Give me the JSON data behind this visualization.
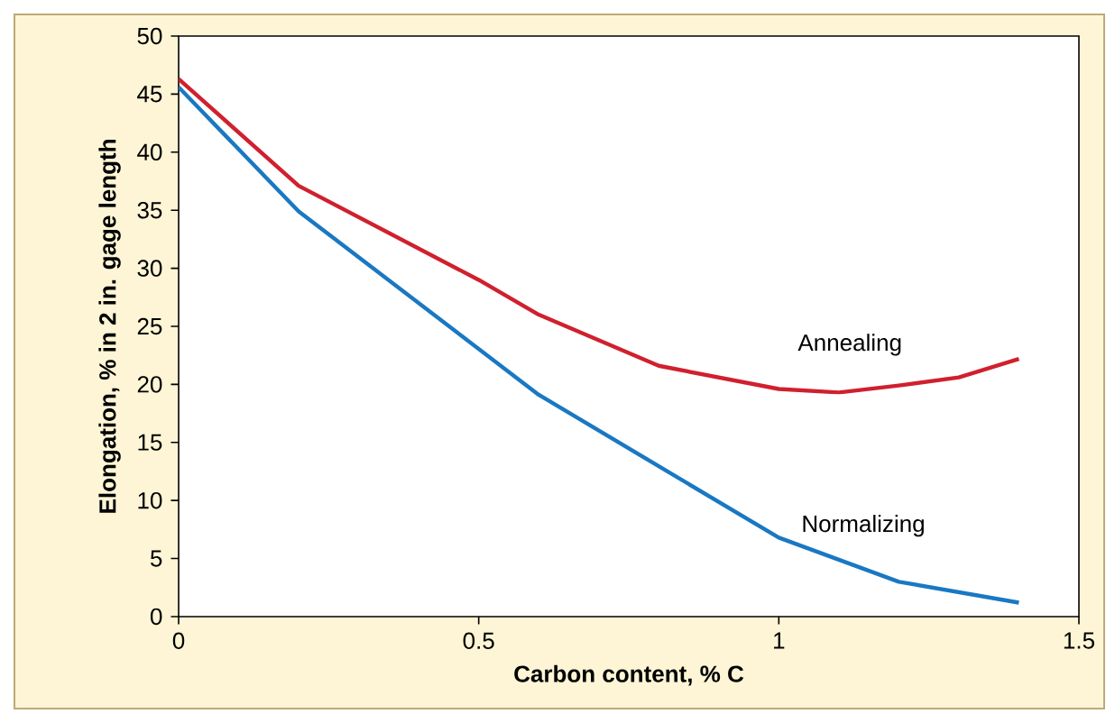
{
  "chart_data": {
    "type": "line",
    "xlabel": "Carbon content, % C",
    "ylabel": "Elongation, % in 2 in. gage length",
    "xlim": [
      0,
      1.5
    ],
    "xticks": [
      0,
      0.5,
      1,
      1.5
    ],
    "ylim": [
      0,
      50
    ],
    "yticks": [
      0,
      5,
      10,
      15,
      20,
      25,
      30,
      35,
      40,
      45,
      50
    ],
    "grid": false,
    "legend": false,
    "marker": "none",
    "line_style": "solid",
    "series": [
      {
        "name": "Annealing",
        "color": "#d0202e",
        "x": [
          0,
          0.2,
          0.5,
          0.6,
          0.8,
          1.0,
          1.1,
          1.2,
          1.3,
          1.4
        ],
        "values": [
          46.3,
          37.1,
          29,
          26,
          21.6,
          19.6,
          19.3,
          19.9,
          20.6,
          22.2
        ]
      },
      {
        "name": "Normalizing",
        "color": "#1a78c2",
        "x": [
          0,
          0.2,
          0.6,
          1.0,
          1.2,
          1.4
        ],
        "values": [
          45.6,
          34.9,
          19.1,
          6.8,
          3,
          1.2
        ]
      }
    ]
  }
}
